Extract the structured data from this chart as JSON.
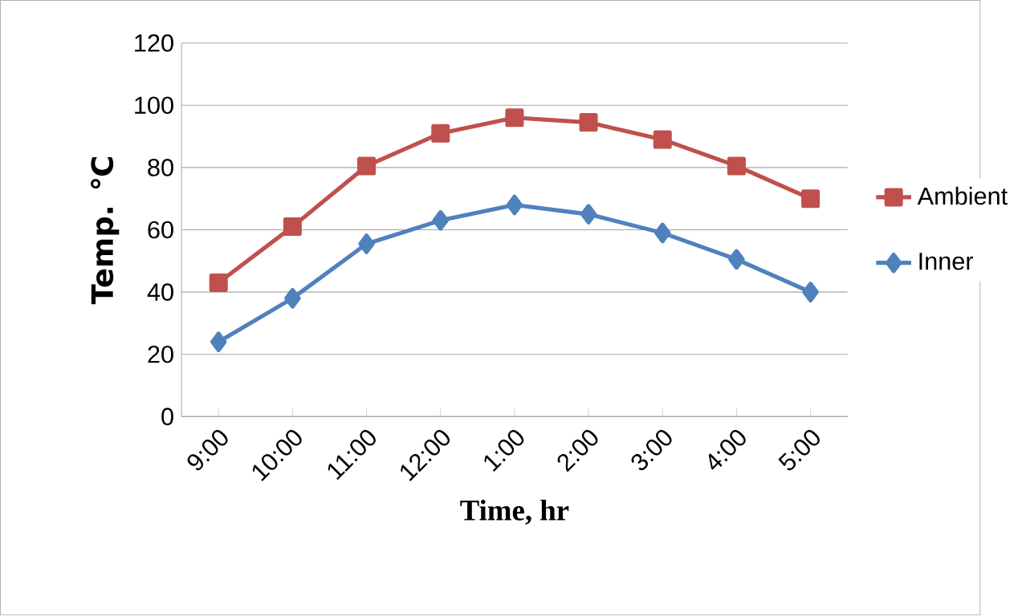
{
  "chart_data": {
    "type": "line",
    "xlabel": "Time, hr",
    "ylabel": "Temp. ℃",
    "categories": [
      "9:00",
      "10:00",
      "11:00",
      "12:00",
      "1:00",
      "2:00",
      "3:00",
      "4:00",
      "5:00"
    ],
    "series": [
      {
        "name": "Ambient",
        "color": "#c0504d",
        "marker": "square",
        "values": [
          43,
          61,
          80.5,
          91,
          96,
          94.5,
          89,
          80.5,
          70
        ]
      },
      {
        "name": "Inner",
        "color": "#4f81bd",
        "marker": "diamond",
        "values": [
          24,
          38,
          55.5,
          63,
          68,
          65,
          59,
          50.5,
          40
        ]
      }
    ],
    "ylim": [
      0,
      120
    ],
    "yticks": [
      0,
      20,
      40,
      60,
      80,
      100,
      120
    ],
    "grid": "y",
    "legend": "right",
    "line_style": "solid"
  }
}
